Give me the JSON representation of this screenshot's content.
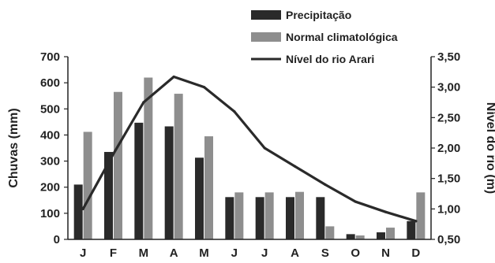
{
  "chart_data": {
    "type": "bar",
    "categories": [
      "J",
      "F",
      "M",
      "A",
      "M",
      "J",
      "J",
      "A",
      "S",
      "O",
      "N",
      "D"
    ],
    "series": [
      {
        "name": "Precipitação",
        "kind": "bar",
        "axis": "left",
        "color": "#2a2a2a",
        "values": [
          210,
          335,
          447,
          433,
          313,
          162,
          162,
          162,
          162,
          20,
          27,
          70
        ]
      },
      {
        "name": "Normal climatológica",
        "kind": "bar",
        "axis": "left",
        "color": "#8e8e8e",
        "values": [
          412,
          565,
          620,
          558,
          395,
          180,
          180,
          182,
          50,
          15,
          45,
          180
        ]
      },
      {
        "name": "Nível do rio Arari",
        "kind": "line",
        "axis": "right",
        "color": "#2a2a2a",
        "values": [
          1.0,
          1.9,
          2.75,
          3.17,
          3.0,
          2.6,
          2.0,
          1.7,
          1.4,
          1.12,
          0.95,
          0.8
        ]
      }
    ],
    "ylabel": "Chuvas (mm)",
    "ylim": [
      0,
      700
    ],
    "yticks": [
      "0",
      "100",
      "200",
      "300",
      "400",
      "500",
      "600",
      "700"
    ],
    "y2label": "Nível do rio (m)",
    "y2lim": [
      0.5,
      3.5
    ],
    "y2ticks": [
      "0,50",
      "1,00",
      "1,50",
      "2,00",
      "2,50",
      "3,00",
      "3,50"
    ],
    "grid": false,
    "legend_position": "top-right"
  }
}
